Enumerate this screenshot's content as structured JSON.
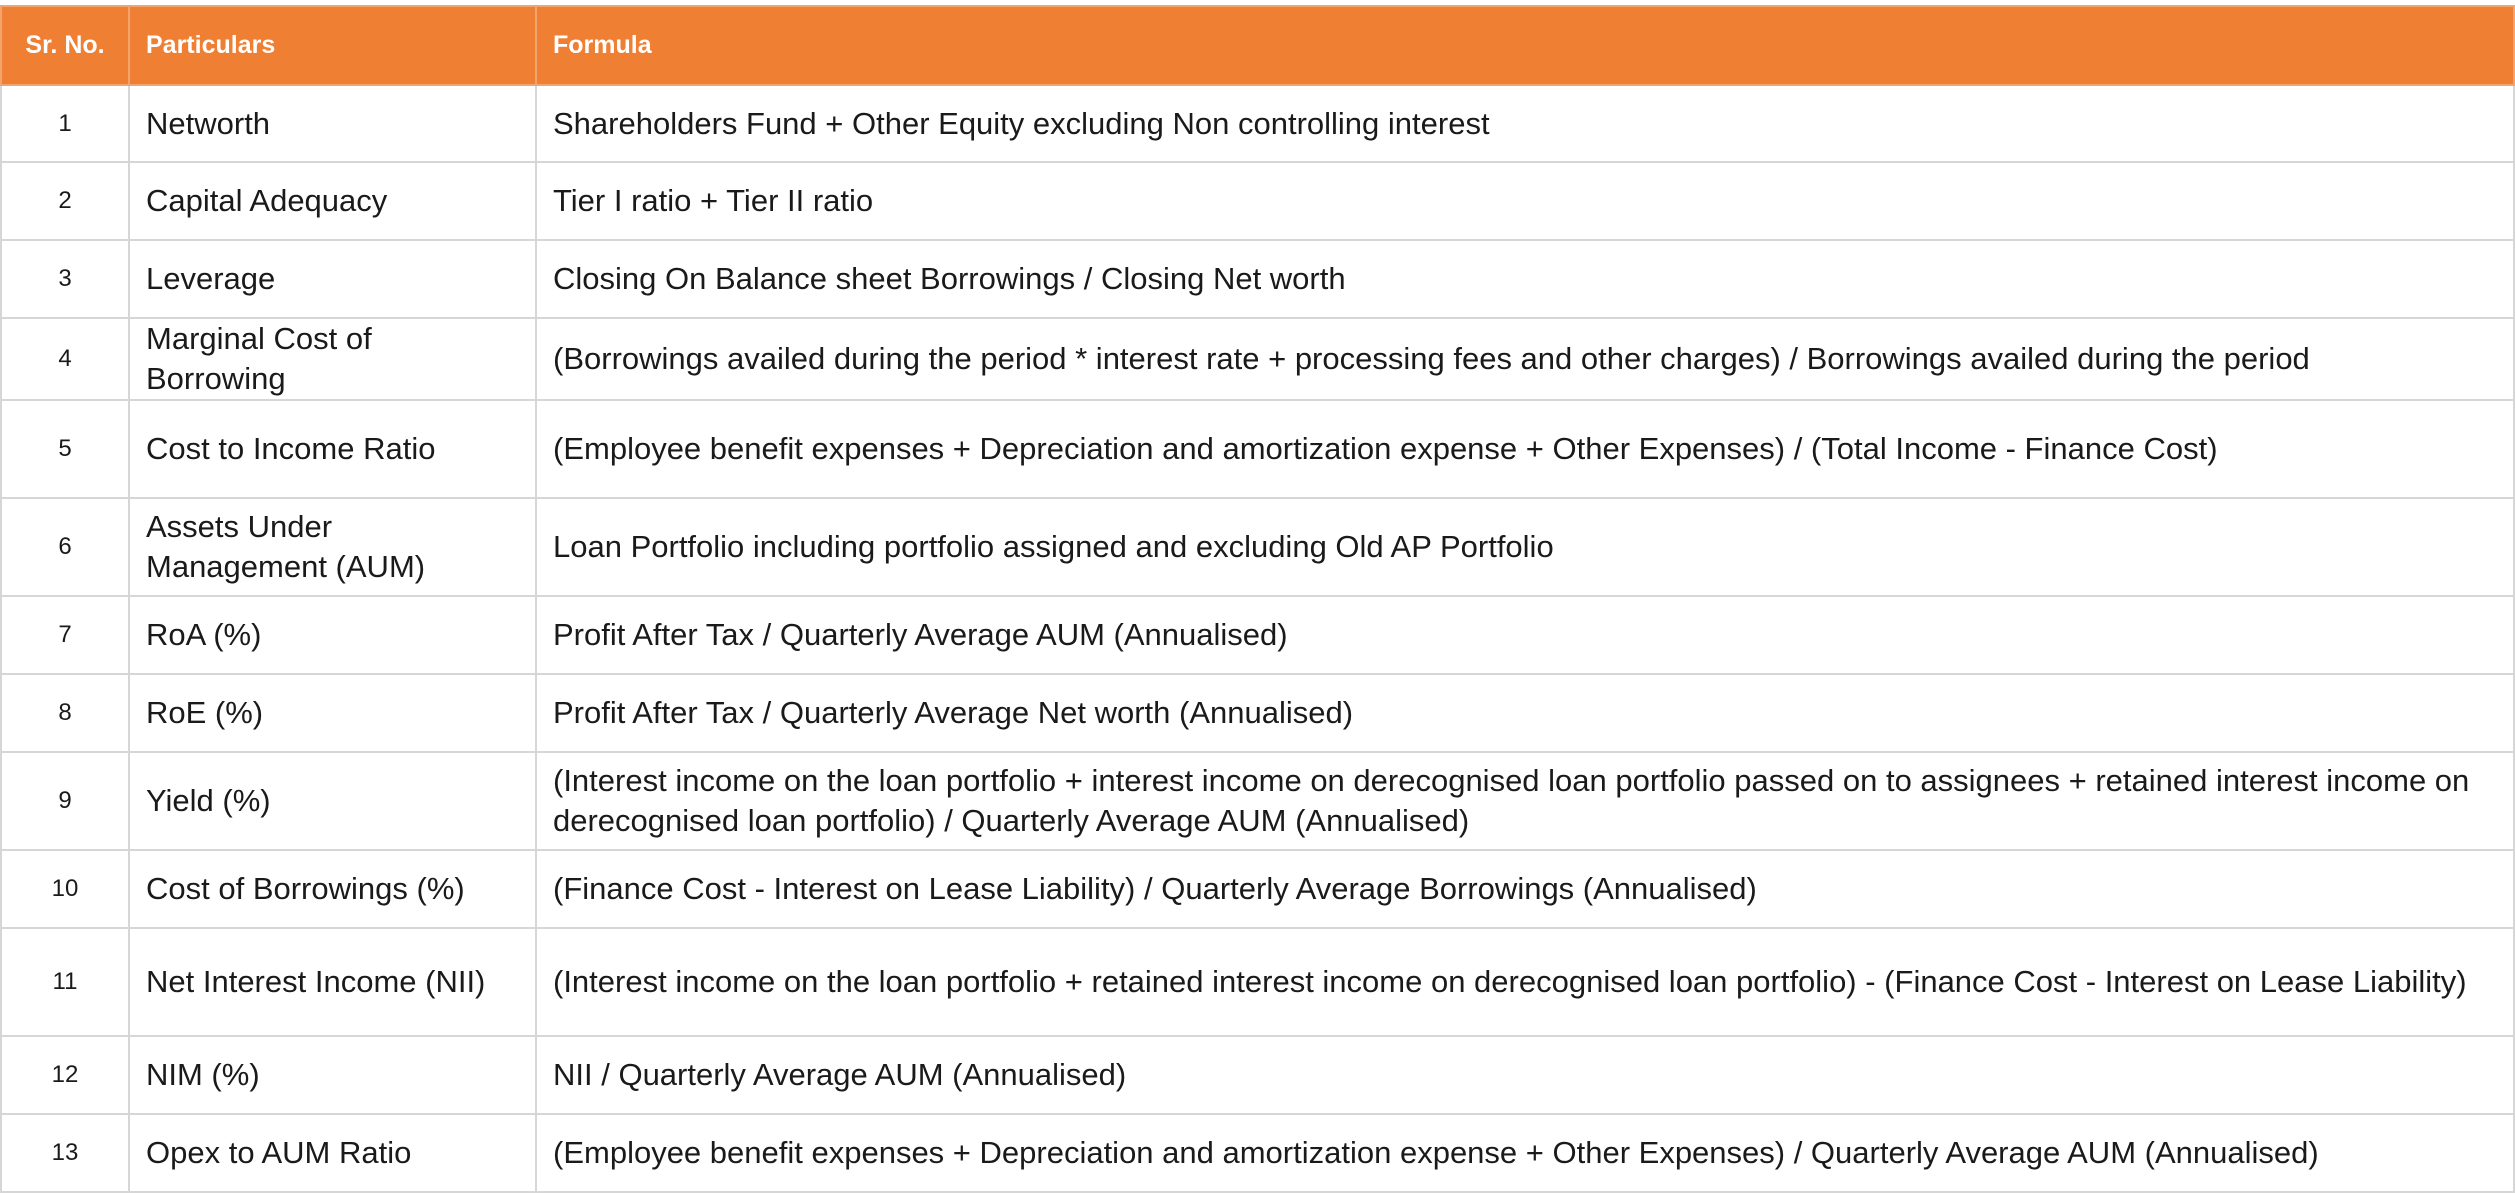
{
  "header": {
    "sr_no": "Sr. No.",
    "particulars": "Particulars",
    "formula": "Formula"
  },
  "rows": [
    {
      "sr": "1",
      "particular": "Networth",
      "formula": "Shareholders Fund + Other Equity excluding Non controlling interest"
    },
    {
      "sr": "2",
      "particular": "Capital Adequacy",
      "formula": "Tier I ratio + Tier II ratio"
    },
    {
      "sr": "3",
      "particular": "Leverage",
      "formula": "Closing On Balance sheet Borrowings / Closing Net worth"
    },
    {
      "sr": "4",
      "particular": "Marginal Cost of Borrowing",
      "formula": "(Borrowings availed during the period * interest rate + processing fees and other charges) / Borrowings availed during the period"
    },
    {
      "sr": "5",
      "particular": "Cost to Income Ratio",
      "formula": "(Employee benefit expenses + Depreciation and amortization expense + Other Expenses) / (Total Income - Finance Cost)"
    },
    {
      "sr": "6",
      "particular": "Assets Under Management (AUM)",
      "formula": "Loan Portfolio including portfolio assigned and excluding Old AP Portfolio"
    },
    {
      "sr": "7",
      "particular": "RoA (%)",
      "formula": "Profit After Tax / Quarterly Average AUM (Annualised)"
    },
    {
      "sr": "8",
      "particular": "RoE (%)",
      "formula": "Profit After Tax / Quarterly Average Net worth (Annualised)"
    },
    {
      "sr": "9",
      "particular": "Yield (%)",
      "formula": "(Interest income on the loan portfolio + interest income on derecognised loan portfolio passed on to assignees + retained interest income on derecognised loan portfolio) / Quarterly Average AUM (Annualised)"
    },
    {
      "sr": "10",
      "particular": "Cost of Borrowings (%)",
      "formula": "(Finance Cost - Interest on Lease Liability) / Quarterly Average Borrowings (Annualised)"
    },
    {
      "sr": "11",
      "particular": "Net Interest Income (NII)",
      "formula": "(Interest income on the loan portfolio + retained interest income on derecognised loan portfolio) - (Finance Cost - Interest on Lease Liability)"
    },
    {
      "sr": "12",
      "particular": "NIM (%)",
      "formula": "NII / Quarterly Average AUM (Annualised)"
    },
    {
      "sr": "13",
      "particular": "Opex to AUM Ratio",
      "formula": "(Employee benefit expenses + Depreciation and amortization expense + Other Expenses) / Quarterly Average AUM (Annualised)"
    }
  ],
  "colors": {
    "header_bg": "#ee7f33",
    "header_text": "#ffffff",
    "border": "#d6d6d6"
  }
}
